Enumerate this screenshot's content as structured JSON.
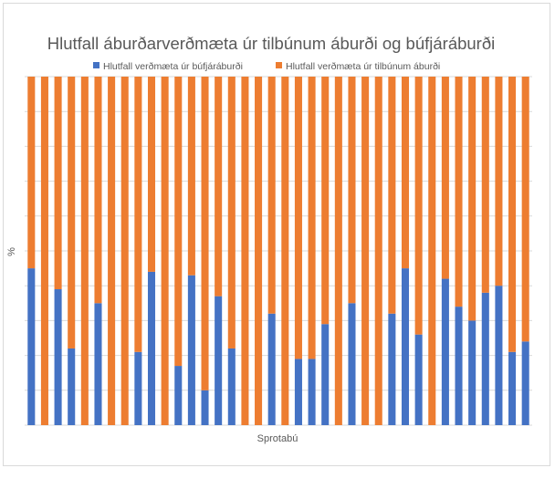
{
  "chart_data": {
    "type": "bar",
    "stacked": true,
    "percent_stacked": true,
    "title": "Hlutfall áburðarverðmæta úr tilbúnum áburði og búfjáráburði",
    "xlabel": "Sprotabú",
    "ylabel": "%",
    "ylim": [
      0,
      100
    ],
    "grid": true,
    "legend_position": "top",
    "series": [
      {
        "name": "Hlutfall verðmæta úr búfjáráburði",
        "color": "#4472c4",
        "values": [
          45,
          0,
          39,
          22,
          0,
          35,
          0,
          0,
          21,
          44,
          0,
          17,
          43,
          10,
          37,
          22,
          0,
          0,
          32,
          0,
          19,
          19,
          29,
          0,
          35,
          0,
          0,
          32,
          45,
          26,
          0,
          42,
          34,
          30,
          38,
          40,
          21,
          24
        ]
      },
      {
        "name": "Hlutfall verðmæta úr tilbúnum áburði",
        "color": "#ed7d31",
        "values": [
          55,
          100,
          61,
          78,
          100,
          65,
          100,
          100,
          79,
          56,
          100,
          83,
          57,
          90,
          63,
          78,
          100,
          100,
          68,
          100,
          81,
          81,
          71,
          100,
          65,
          100,
          100,
          68,
          55,
          74,
          100,
          58,
          66,
          70,
          62,
          60,
          79,
          76
        ]
      }
    ]
  }
}
